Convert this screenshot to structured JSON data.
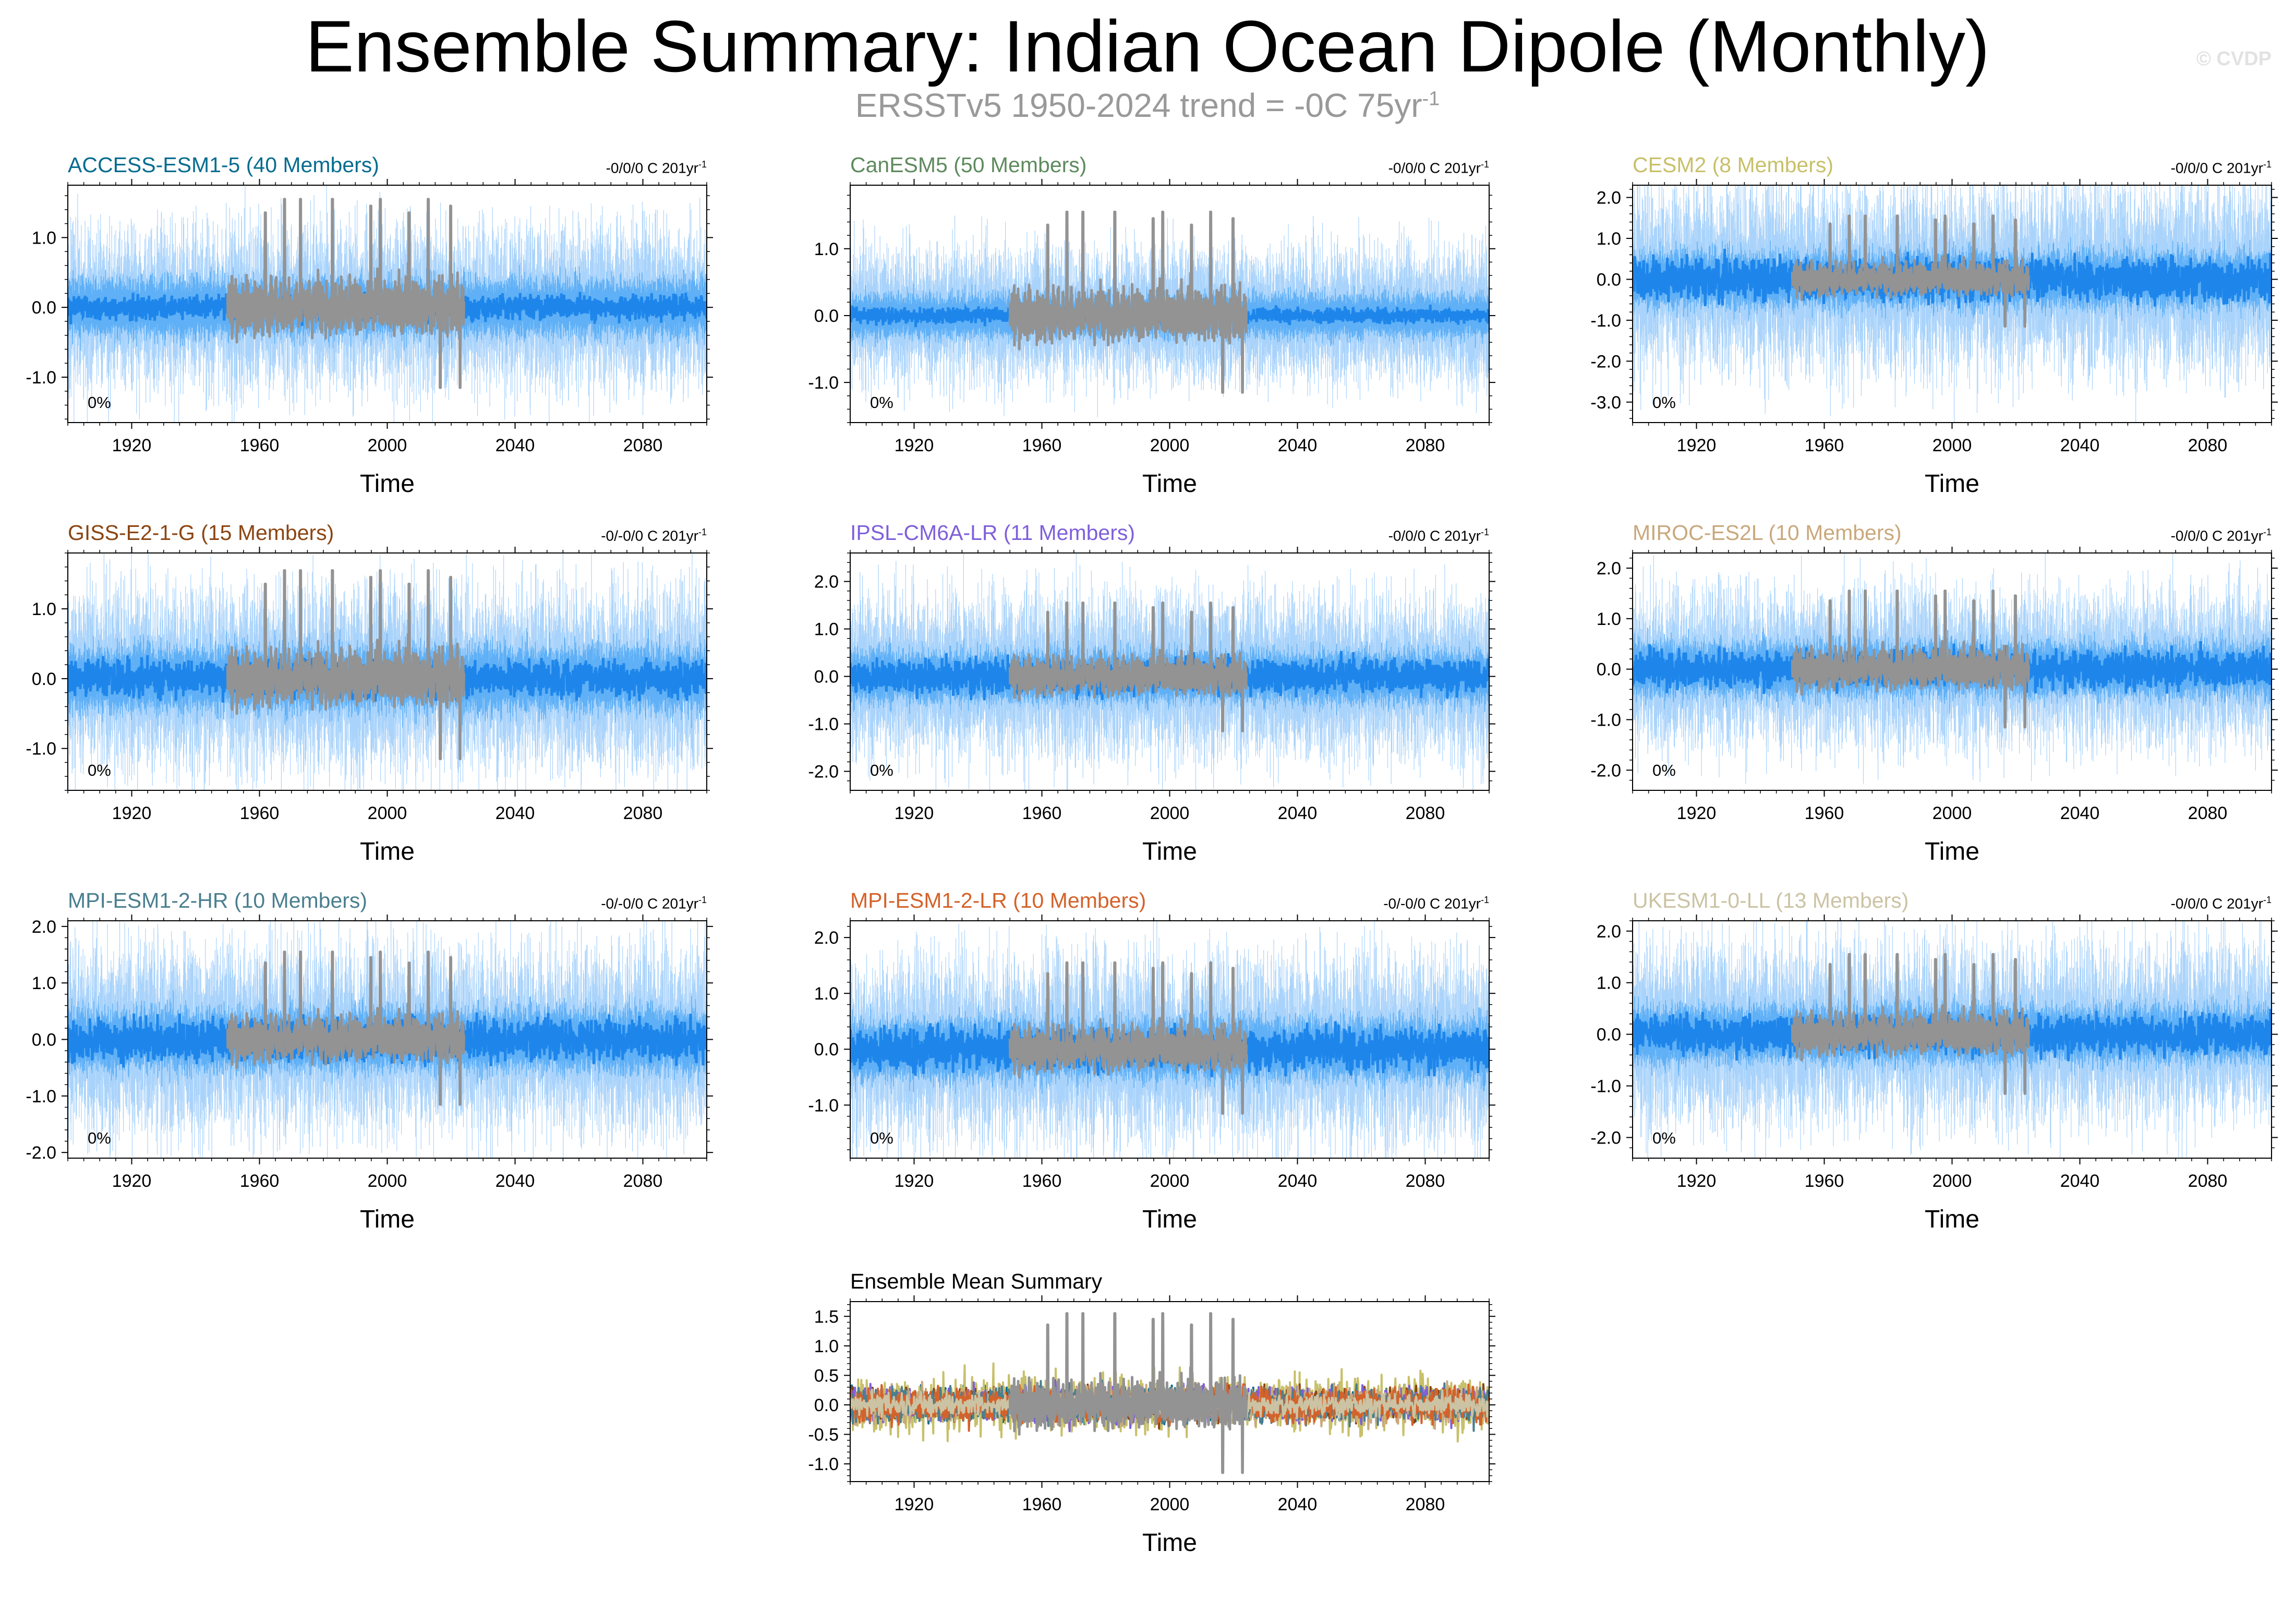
{
  "header": {
    "title": "Ensemble Summary: Indian Ocean Dipole (Monthly)",
    "subtitle": "ERSSTv5 1950-2024 trend = -0C 75yr",
    "subtitle_exp": "-1",
    "copyright": "© CVDP"
  },
  "colors": {
    "observations": "#939393",
    "ensemble_mean": "#1e86eb",
    "ensemble_range": "#5fb0f6",
    "ensemble_members": "#a9d3fb"
  },
  "chart_data": [
    {
      "type": "line",
      "title": "ACCESS-ESM1-5 (40 Members)",
      "title_color": "#046c8f",
      "trend_label": "-0/0/0 C 201yr",
      "trend_exp": "-1",
      "pct_label": "0%",
      "xlabel": "Time",
      "xlim": [
        1900,
        2100
      ],
      "xticks": [
        1920,
        1960,
        2000,
        2040,
        2080
      ],
      "ylim": [
        -1.65,
        1.75
      ],
      "yticks": [
        -1.0,
        0.0,
        1.0
      ],
      "ytick_labels": [
        "-1.0",
        "0.0",
        "1.0"
      ],
      "series": [
        {
          "role": "ensemble",
          "x_range": [
            1900,
            2100
          ],
          "mean_amp": 0.12,
          "range_amp": 0.45,
          "member_amp": 1.2
        },
        {
          "role": "observations",
          "x_range": [
            1950,
            2024
          ],
          "peak_max": 1.55,
          "trough_min": -1.15
        }
      ]
    },
    {
      "type": "line",
      "title": "CanESM5 (50 Members)",
      "title_color": "#5e8a5e",
      "trend_label": "-0/0/0 C 201yr",
      "trend_exp": "-1",
      "pct_label": "0%",
      "xlabel": "Time",
      "xlim": [
        1900,
        2100
      ],
      "xticks": [
        1920,
        1960,
        2000,
        2040,
        2080
      ],
      "ylim": [
        -1.6,
        1.95
      ],
      "yticks": [
        -1.0,
        0.0,
        1.0
      ],
      "ytick_labels": [
        "-1.0",
        "0.0",
        "1.0"
      ],
      "series": [
        {
          "role": "ensemble",
          "x_range": [
            1900,
            2100
          ],
          "mean_amp": 0.08,
          "range_amp": 0.35,
          "member_amp": 1.05
        },
        {
          "role": "observations",
          "x_range": [
            1950,
            2024
          ],
          "peak_max": 1.55,
          "trough_min": -1.15
        }
      ]
    },
    {
      "type": "line",
      "title": "CESM2 (8 Members)",
      "title_color": "#c8c06a",
      "trend_label": "-0/0/0 C 201yr",
      "trend_exp": "-1",
      "pct_label": "0%",
      "xlabel": "Time",
      "xlim": [
        1900,
        2100
      ],
      "xticks": [
        1920,
        1960,
        2000,
        2040,
        2080
      ],
      "ylim": [
        -3.5,
        2.3
      ],
      "yticks": [
        -3.0,
        -2.0,
        -1.0,
        0.0,
        1.0,
        2.0
      ],
      "ytick_labels": [
        "-3.0",
        "-2.0",
        "-1.0",
        "0.0",
        "1.0",
        "2.0"
      ],
      "series": [
        {
          "role": "ensemble",
          "x_range": [
            1900,
            2100
          ],
          "mean_amp": 0.35,
          "range_amp": 0.75,
          "member_amp": 2.4
        },
        {
          "role": "observations",
          "x_range": [
            1950,
            2024
          ],
          "peak_max": 1.55,
          "trough_min": -1.15
        }
      ]
    },
    {
      "type": "line",
      "title": "GISS-E2-1-G (15 Members)",
      "title_color": "#8b4513",
      "trend_label": "-0/-0/0 C 201yr",
      "trend_exp": "-1",
      "pct_label": "0%",
      "xlabel": "Time",
      "xlim": [
        1900,
        2100
      ],
      "xticks": [
        1920,
        1960,
        2000,
        2040,
        2080
      ],
      "ylim": [
        -1.6,
        1.8
      ],
      "yticks": [
        -1.0,
        0.0,
        1.0
      ],
      "ytick_labels": [
        "-1.0",
        "0.0",
        "1.0"
      ],
      "series": [
        {
          "role": "ensemble",
          "x_range": [
            1900,
            2100
          ],
          "mean_amp": 0.18,
          "range_amp": 0.5,
          "member_amp": 1.35
        },
        {
          "role": "observations",
          "x_range": [
            1950,
            2024
          ],
          "peak_max": 1.55,
          "trough_min": -1.15
        }
      ]
    },
    {
      "type": "line",
      "title": "IPSL-CM6A-LR (11 Members)",
      "title_color": "#7f5fdb",
      "trend_label": "-0/0/0 C 201yr",
      "trend_exp": "-1",
      "pct_label": "0%",
      "xlabel": "Time",
      "xlim": [
        1900,
        2100
      ],
      "xticks": [
        1920,
        1960,
        2000,
        2040,
        2080
      ],
      "ylim": [
        -2.4,
        2.6
      ],
      "yticks": [
        -2.0,
        -1.0,
        0.0,
        1.0,
        2.0
      ],
      "ytick_labels": [
        "-2.0",
        "-1.0",
        "0.0",
        "1.0",
        "2.0"
      ],
      "series": [
        {
          "role": "ensemble",
          "x_range": [
            1900,
            2100
          ],
          "mean_amp": 0.25,
          "range_amp": 0.6,
          "member_amp": 1.8
        },
        {
          "role": "observations",
          "x_range": [
            1950,
            2024
          ],
          "peak_max": 1.55,
          "trough_min": -1.15
        }
      ]
    },
    {
      "type": "line",
      "title": "MIROC-ES2L (10 Members)",
      "title_color": "#c9a87c",
      "trend_label": "-0/0/0 C 201yr",
      "trend_exp": "-1",
      "pct_label": "0%",
      "xlabel": "Time",
      "xlim": [
        1900,
        2100
      ],
      "xticks": [
        1920,
        1960,
        2000,
        2040,
        2080
      ],
      "ylim": [
        -2.4,
        2.3
      ],
      "yticks": [
        -2.0,
        -1.0,
        0.0,
        1.0,
        2.0
      ],
      "ytick_labels": [
        "-2.0",
        "-1.0",
        "0.0",
        "1.0",
        "2.0"
      ],
      "series": [
        {
          "role": "ensemble",
          "x_range": [
            1900,
            2100
          ],
          "mean_amp": 0.25,
          "range_amp": 0.6,
          "member_amp": 1.6
        },
        {
          "role": "observations",
          "x_range": [
            1950,
            2024
          ],
          "peak_max": 1.55,
          "trough_min": -1.15
        }
      ]
    },
    {
      "type": "line",
      "title": "MPI-ESM1-2-HR (10 Members)",
      "title_color": "#4a7f8f",
      "trend_label": "-0/-0/0 C 201yr",
      "trend_exp": "-1",
      "pct_label": "0%",
      "xlabel": "Time",
      "xlim": [
        1900,
        2100
      ],
      "xticks": [
        1920,
        1960,
        2000,
        2040,
        2080
      ],
      "ylim": [
        -2.1,
        2.1
      ],
      "yticks": [
        -2.0,
        -1.0,
        0.0,
        1.0,
        2.0
      ],
      "ytick_labels": [
        "-2.0",
        "-1.0",
        "0.0",
        "1.0",
        "2.0"
      ],
      "series": [
        {
          "role": "ensemble",
          "x_range": [
            1900,
            2100
          ],
          "mean_amp": 0.25,
          "range_amp": 0.6,
          "member_amp": 1.7
        },
        {
          "role": "observations",
          "x_range": [
            1950,
            2024
          ],
          "peak_max": 1.55,
          "trough_min": -1.15
        }
      ]
    },
    {
      "type": "line",
      "title": "MPI-ESM1-2-LR (10 Members)",
      "title_color": "#d4622a",
      "trend_label": "-0/-0/0 C 201yr",
      "trend_exp": "-1",
      "pct_label": "0%",
      "xlabel": "Time",
      "xlim": [
        1900,
        2100
      ],
      "xticks": [
        1920,
        1960,
        2000,
        2040,
        2080
      ],
      "ylim": [
        -1.95,
        2.3
      ],
      "yticks": [
        -1.0,
        0.0,
        1.0,
        2.0
      ],
      "ytick_labels": [
        "-1.0",
        "0.0",
        "1.0",
        "2.0"
      ],
      "series": [
        {
          "role": "ensemble",
          "x_range": [
            1900,
            2100
          ],
          "mean_amp": 0.25,
          "range_amp": 0.6,
          "member_amp": 1.7
        },
        {
          "role": "observations",
          "x_range": [
            1950,
            2024
          ],
          "peak_max": 1.55,
          "trough_min": -1.15
        }
      ]
    },
    {
      "type": "line",
      "title": "UKESM1-0-LL (13 Members)",
      "title_color": "#cbc3a3",
      "trend_label": "-0/0/0 C 201yr",
      "trend_exp": "-1",
      "pct_label": "0%",
      "xlabel": "Time",
      "xlim": [
        1900,
        2100
      ],
      "xticks": [
        1920,
        1960,
        2000,
        2040,
        2080
      ],
      "ylim": [
        -2.4,
        2.2
      ],
      "yticks": [
        -2.0,
        -1.0,
        0.0,
        1.0,
        2.0
      ],
      "ytick_labels": [
        "-2.0",
        "-1.0",
        "0.0",
        "1.0",
        "2.0"
      ],
      "series": [
        {
          "role": "ensemble",
          "x_range": [
            1900,
            2100
          ],
          "mean_amp": 0.25,
          "range_amp": 0.6,
          "member_amp": 1.8
        },
        {
          "role": "observations",
          "x_range": [
            1950,
            2024
          ],
          "peak_max": 1.55,
          "trough_min": -1.15
        }
      ]
    },
    {
      "type": "line",
      "title": "Ensemble Mean Summary",
      "title_color": "#000000",
      "trend_label": "",
      "trend_exp": "",
      "pct_label": "",
      "xlabel": "Time",
      "xlim": [
        1900,
        2100
      ],
      "xticks": [
        1920,
        1960,
        2000,
        2040,
        2080
      ],
      "ylim": [
        -1.3,
        1.75
      ],
      "yticks": [
        -1.0,
        -0.5,
        0.0,
        0.5,
        1.0,
        1.5
      ],
      "ytick_labels": [
        "-1.0",
        "-0.5",
        "0.0",
        "0.5",
        "1.0",
        "1.5"
      ],
      "series": [
        {
          "role": "model-mean",
          "name": "ACCESS-ESM1-5",
          "color": "#046c8f",
          "amp": 0.3
        },
        {
          "role": "model-mean",
          "name": "CanESM5",
          "color": "#5e8a5e",
          "amp": 0.25
        },
        {
          "role": "model-mean",
          "name": "CESM2",
          "color": "#c8c06a",
          "amp": 0.55
        },
        {
          "role": "model-mean",
          "name": "GISS-E2-1-G",
          "color": "#8b4513",
          "amp": 0.3
        },
        {
          "role": "model-mean",
          "name": "IPSL-CM6A-LR",
          "color": "#7f5fdb",
          "amp": 0.35
        },
        {
          "role": "model-mean",
          "name": "MIROC-ES2L",
          "color": "#c9a87c",
          "amp": 0.35
        },
        {
          "role": "model-mean",
          "name": "MPI-ESM1-2-HR",
          "color": "#4a7f8f",
          "amp": 0.35
        },
        {
          "role": "model-mean",
          "name": "MPI-ESM1-2-LR",
          "color": "#d4622a",
          "amp": 0.35
        },
        {
          "role": "model-mean",
          "name": "UKESM1-0-LL",
          "color": "#cbc3a3",
          "amp": 0.2
        },
        {
          "role": "observations",
          "x_range": [
            1950,
            2024
          ],
          "peak_max": 1.55,
          "trough_min": -1.15
        }
      ]
    }
  ]
}
